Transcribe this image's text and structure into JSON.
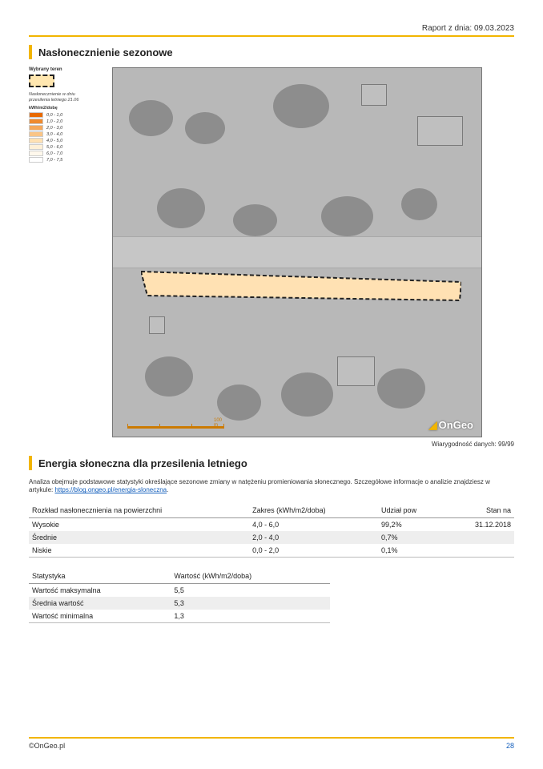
{
  "header": {
    "date_label": "Raport z dnia: 09.03.2023"
  },
  "section1": {
    "title": "Nasłonecznienie sezonowe",
    "legend": {
      "title": "Wybrany teren",
      "sub1": "Nasłonecznienie w dniu",
      "sub2": "przesilenia letniego 21.06",
      "unit": "kWh/m2/dobę",
      "bands": [
        {
          "label": "0,0 - 1,0",
          "color": "#e86a00"
        },
        {
          "label": "1,0 - 2,0",
          "color": "#ef8a2e"
        },
        {
          "label": "2,0 - 3,0",
          "color": "#f5a85a"
        },
        {
          "label": "3,0 - 4,0",
          "color": "#fac586"
        },
        {
          "label": "4,0 - 5,0",
          "color": "#ffe1b3"
        },
        {
          "label": "5,0 - 6,0",
          "color": "#fff0d7"
        },
        {
          "label": "6,0 - 7,0",
          "color": "#fff8ec"
        },
        {
          "label": "7,0 - 7,5",
          "color": "#ffffff"
        }
      ]
    },
    "map": {
      "parcel_fill": "#ffe1b3",
      "parcel_stroke": "#222",
      "scale_label": "100 m",
      "brand": "OnGeo"
    },
    "credibility": "Wiarygodność danych: 99/99"
  },
  "section2": {
    "title": "Energia słoneczna dla przesilenia letniego",
    "desc_pre": "Analiza obejmuje podstawowe statystyki określające sezonowe zmiany w natężeniu promieniowania słonecznego. Szczegółowe informacje o analizie znajdziesz w artykule: ",
    "link_text": "https://blog.ongeo.pl/energia-sloneczna",
    "table1": {
      "columns": [
        "Rozkład nasłonecznienia na powierzchni",
        "Zakres (kWh/m2/doba)",
        "Udział pow",
        "Stan na"
      ],
      "rows": [
        [
          "Wysokie",
          "4,0 - 6,0",
          "99,2%",
          "31.12.2018"
        ],
        [
          "Średnie",
          "2,0 - 4,0",
          "0,7%",
          ""
        ],
        [
          "Niskie",
          "0,0 - 2,0",
          "0,1%",
          ""
        ]
      ]
    },
    "table2": {
      "columns": [
        "Statystyka",
        "Wartość (kWh/m2/doba)"
      ],
      "rows": [
        [
          "Wartość maksymalna",
          "5,5"
        ],
        [
          "Średnia wartość",
          "5,3"
        ],
        [
          "Wartość minimalna",
          "1,3"
        ]
      ]
    }
  },
  "footer": {
    "copyright": "©OnGeo.pl",
    "page": "28"
  }
}
